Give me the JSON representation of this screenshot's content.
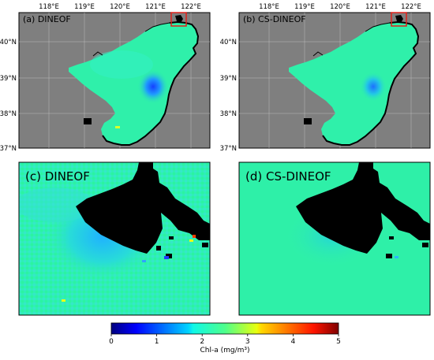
{
  "panels": [
    {
      "label": "(a) DINEOF"
    },
    {
      "label": "(b) CS-DINEOF"
    },
    {
      "label": "(c) DINEOF"
    },
    {
      "label": "(d) CS-DINEOF"
    }
  ],
  "lon_ticks": [
    "118°E",
    "119°E",
    "120°E",
    "121°E",
    "122°E"
  ],
  "lat_ticks": [
    "40°N",
    "39°N",
    "38°N",
    "37°N"
  ],
  "colorbar": {
    "label": "Chl-a (mg/m³)",
    "min": 0,
    "max": 5,
    "ticks": [
      "0",
      "1",
      "2",
      "3",
      "4",
      "5"
    ],
    "colormap": "jet"
  },
  "colors": {
    "land": "#7f7f7f",
    "sea": "#2ff0aa",
    "coast": "#000000",
    "highlight_box": "#e0201a"
  }
}
